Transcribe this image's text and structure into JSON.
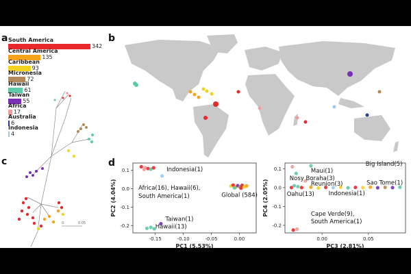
{
  "panels": {
    "a": "a",
    "b": "b",
    "c": "c",
    "d": "d"
  },
  "colors": {
    "south_america": "#e8282a",
    "central_america": "#f5a31a",
    "caribbean": "#f5d21f",
    "micronesia": "#b08a5a",
    "hawaii": "#5fc8a6",
    "taiwan": "#7b2fb5",
    "africa": "#f29a9a",
    "australia": "#2a3c8f",
    "indonesia": "#9ec8e8",
    "map_land": "#c9c9c9"
  },
  "bars": [
    {
      "label": "South America",
      "value": 342,
      "color": "#e8282a"
    },
    {
      "label": "Central America",
      "value": 135,
      "color": "#f5a31a"
    },
    {
      "label": "Caribbean",
      "value": 93,
      "color": "#f5d21f"
    },
    {
      "label": "Micronesia",
      "value": 72,
      "color": "#b08a5a"
    },
    {
      "label": "Hawaii",
      "value": 61,
      "color": "#5fc8a6"
    },
    {
      "label": "Taiwan",
      "value": 55,
      "color": "#7b2fb5"
    },
    {
      "label": "Africa",
      "value": 17,
      "color": "#f29a9a"
    },
    {
      "label": "Australia",
      "value": 6,
      "color": "#2a3c8f"
    },
    {
      "label": "Indonesia",
      "value": 4,
      "color": "#9ec8e8"
    }
  ],
  "tree": {
    "scale_label": "0.05"
  },
  "chart_data": [
    {
      "type": "scatter",
      "title": "",
      "xlabel": "PC1 (5.53%)",
      "ylabel": "PC2 (4.04%)",
      "xlim": [
        -0.19,
        0.03
      ],
      "ylim": [
        -0.24,
        0.14
      ],
      "xticks": [
        "-0.15",
        "-0.10",
        "-0.05",
        "0.00"
      ],
      "yticks": [
        "0.1",
        "0.0",
        "-0.1",
        "-0.2"
      ],
      "points": [
        {
          "x": -0.175,
          "y": 0.12,
          "c": "#e8282a"
        },
        {
          "x": -0.168,
          "y": 0.115,
          "c": "#f29a9a"
        },
        {
          "x": -0.163,
          "y": 0.11,
          "c": "#e8282a"
        },
        {
          "x": -0.158,
          "y": 0.107,
          "c": "#5fc8a6"
        },
        {
          "x": -0.17,
          "y": 0.105,
          "c": "#f29a9a"
        },
        {
          "x": -0.153,
          "y": 0.114,
          "c": "#e8282a"
        },
        {
          "x": -0.138,
          "y": 0.07,
          "c": "#9ec8e8"
        },
        {
          "x": -0.14,
          "y": -0.19,
          "c": "#7b2fb5"
        },
        {
          "x": -0.165,
          "y": -0.215,
          "c": "#5fc8a6"
        },
        {
          "x": -0.158,
          "y": -0.21,
          "c": "#5fc8a6"
        },
        {
          "x": -0.152,
          "y": -0.218,
          "c": "#5fc8a6"
        },
        {
          "x": -0.015,
          "y": 0.015,
          "c": "#f5d21f"
        },
        {
          "x": -0.011,
          "y": 0.02,
          "c": "#e8282a"
        },
        {
          "x": -0.007,
          "y": 0.008,
          "c": "#f5a31a"
        },
        {
          "x": -0.003,
          "y": 0.017,
          "c": "#7b2fb5"
        },
        {
          "x": 0.001,
          "y": 0.011,
          "c": "#b08a5a"
        },
        {
          "x": 0.005,
          "y": 0.019,
          "c": "#e8282a"
        },
        {
          "x": 0.009,
          "y": 0.01,
          "c": "#f5d21f"
        },
        {
          "x": 0.013,
          "y": 0.016,
          "c": "#f5a31a"
        },
        {
          "x": -0.009,
          "y": 0.005,
          "c": "#5fc8a6"
        },
        {
          "x": 0.003,
          "y": 0.003,
          "c": "#e8282a"
        }
      ],
      "annotations": [
        {
          "text": "Indonesia(1)",
          "x": -0.13,
          "y": 0.095
        },
        {
          "text": "Africa(16), Hawaii(6),",
          "x": -0.18,
          "y": -0.005
        },
        {
          "text": "South America(1)",
          "x": -0.18,
          "y": -0.05
        },
        {
          "text": "Global (584)",
          "x": -0.032,
          "y": -0.045
        },
        {
          "text": "Taiwan(1)",
          "x": -0.132,
          "y": -0.175
        },
        {
          "text": "Hawaii(13)",
          "x": -0.15,
          "y": -0.215
        }
      ]
    },
    {
      "type": "scatter",
      "title": "",
      "xlabel": "PC3 (2.81%)",
      "ylabel": "PC4 (2.05%)",
      "xlim": [
        -0.04,
        0.09
      ],
      "ylim": [
        -0.24,
        0.13
      ],
      "xticks": [
        "0.00",
        "0.05"
      ],
      "yticks": [
        "0.1",
        "0.0",
        "-0.1",
        "-0.2"
      ],
      "points": [
        {
          "x": -0.032,
          "y": 0.11,
          "c": "#f29a9a"
        },
        {
          "x": -0.012,
          "y": 0.115,
          "c": "#5fc8a6"
        },
        {
          "x": -0.028,
          "y": 0.075,
          "c": "#5fc8a6"
        },
        {
          "x": -0.018,
          "y": 0.035,
          "c": "#f29a9a"
        },
        {
          "x": -0.03,
          "y": 0.01,
          "c": "#5fc8a6"
        },
        {
          "x": -0.026,
          "y": 0.005,
          "c": "#5fc8a6"
        },
        {
          "x": -0.033,
          "y": 0.0,
          "c": "#e8282a"
        },
        {
          "x": -0.022,
          "y": 0.0,
          "c": "#e8282a"
        },
        {
          "x": -0.012,
          "y": 0.002,
          "c": "#f5a31a"
        },
        {
          "x": -0.004,
          "y": -0.002,
          "c": "#f5d21f"
        },
        {
          "x": 0.004,
          "y": 0.001,
          "c": "#e8282a"
        },
        {
          "x": 0.012,
          "y": 0.0,
          "c": "#9ec8e8"
        },
        {
          "x": 0.02,
          "y": 0.002,
          "c": "#f5d21f"
        },
        {
          "x": 0.028,
          "y": -0.001,
          "c": "#5fc8a6"
        },
        {
          "x": 0.036,
          "y": 0.001,
          "c": "#e8282a"
        },
        {
          "x": 0.044,
          "y": 0.0,
          "c": "#f5d21f"
        },
        {
          "x": 0.052,
          "y": 0.002,
          "c": "#f5a31a"
        },
        {
          "x": 0.06,
          "y": -0.001,
          "c": "#7b2fb5"
        },
        {
          "x": 0.068,
          "y": 0.001,
          "c": "#b08a5a"
        },
        {
          "x": 0.076,
          "y": 0.0,
          "c": "#7b2fb5"
        },
        {
          "x": 0.084,
          "y": 0.002,
          "c": "#5fc8a6"
        },
        {
          "x": -0.031,
          "y": -0.225,
          "c": "#e8282a"
        },
        {
          "x": -0.027,
          "y": -0.22,
          "c": "#f29a9a"
        }
      ],
      "annotations": [
        {
          "text": "Big Island(5)",
          "x": 0.047,
          "y": 0.115
        },
        {
          "text": "Maui(1)",
          "x": -0.012,
          "y": 0.08
        },
        {
          "text": "Nosy Boraha(3)",
          "x": -0.035,
          "y": 0.04
        },
        {
          "text": "Reunion(3)",
          "x": -0.012,
          "y": 0.01
        },
        {
          "text": "Sao Tome(1)",
          "x": 0.048,
          "y": 0.015
        },
        {
          "text": "Oahu(13)",
          "x": -0.038,
          "y": -0.045
        },
        {
          "text": "Indonesia(1)",
          "x": 0.007,
          "y": -0.04
        },
        {
          "text": "Cape Verde(9),",
          "x": -0.012,
          "y": -0.15
        },
        {
          "text": "South America(1)",
          "x": -0.012,
          "y": -0.19
        }
      ]
    }
  ]
}
